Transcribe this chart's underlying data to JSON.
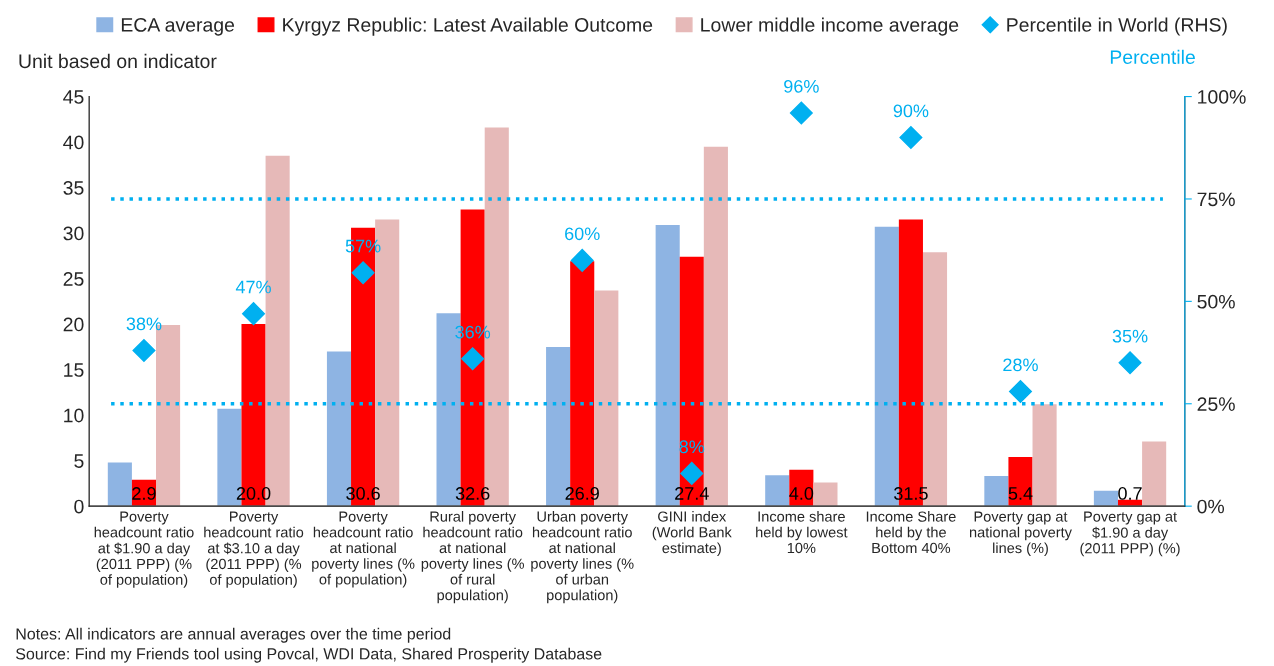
{
  "chart_data": {
    "type": "bar",
    "ylabel": "Unit based on indicator",
    "y2label": "Percentile",
    "categories": [
      "Poverty\nheadcount ratio\nat $1.90 a day\n(2011 PPP) (%\nof population)",
      "Poverty\nheadcount ratio\nat $3.10 a day\n(2011 PPP) (%\nof population)",
      "Poverty\nheadcount ratio\nat national\npoverty lines (%\nof population)",
      "Rural poverty\nheadcount ratio\nat national\npoverty lines (%\nof rural\npopulation)",
      "Urban poverty\nheadcount ratio\nat national\npoverty lines (%\nof urban\npopulation)",
      "GINI index\n(World Bank\nestimate)",
      "Income share\nheld by lowest\n10%",
      "Income Share\nheld by the\nBottom 40%",
      "Poverty gap at\nnational poverty\nlines (%)",
      "Poverty gap at\n$1.90 a day\n(2011 PPP) (%)"
    ],
    "series": [
      {
        "name": "ECA average",
        "color": "#8eb4e3",
        "values": [
          4.8,
          10.7,
          17.0,
          21.2,
          17.5,
          30.9,
          3.4,
          30.7,
          3.3,
          1.7
        ]
      },
      {
        "name": "Kyrgyz Republic: Latest Available Outcome",
        "color": "#ff0000",
        "values": [
          2.9,
          20.0,
          30.6,
          32.6,
          26.9,
          27.4,
          4.0,
          31.5,
          5.4,
          0.7
        ],
        "value_labels": [
          "2.9",
          "20.0",
          "30.6",
          "32.6",
          "26.9",
          "27.4",
          "4.0",
          "31.5",
          "5.4",
          "0.7"
        ]
      },
      {
        "name": "Lower middle income average",
        "color": "#e6b9b8",
        "values": [
          19.9,
          38.5,
          31.5,
          41.6,
          23.7,
          39.5,
          2.6,
          27.9,
          11.2,
          7.1
        ]
      },
      {
        "name": "Percentile in World (RHS)",
        "type": "scatter",
        "axis": "y2",
        "marker": "diamond",
        "color": "#00b0f0",
        "values": [
          38,
          47,
          57,
          36,
          60,
          8,
          96,
          90,
          28,
          35
        ],
        "value_labels": [
          "38%",
          "47%",
          "57%",
          "36%",
          "60%",
          "8%",
          "96%",
          "90%",
          "28%",
          "35%"
        ]
      }
    ],
    "ylim": [
      0,
      45
    ],
    "yticks": [
      0,
      5,
      10,
      15,
      20,
      25,
      30,
      35,
      40,
      45
    ],
    "y2lim": [
      0,
      100
    ],
    "y2ticks": [
      {
        "value": 0,
        "label": "0%"
      },
      {
        "value": 25,
        "label": "25%"
      },
      {
        "value": 50,
        "label": "50%"
      },
      {
        "value": 75,
        "label": "75%"
      },
      {
        "value": 100,
        "label": "100%"
      }
    ],
    "ref_lines": [
      {
        "axis": "y2",
        "value": 25,
        "color": "#00b0f0",
        "line_style": "dotted"
      },
      {
        "axis": "y2",
        "value": 75,
        "color": "#00b0f0",
        "line_style": "dotted"
      }
    ],
    "legend": "top",
    "grid": false,
    "annotations": [
      "Notes: All indicators are annual averages over the time period",
      "Source: Find my Friends tool using Povcal, WDI Data, Shared Prosperity Database"
    ]
  }
}
